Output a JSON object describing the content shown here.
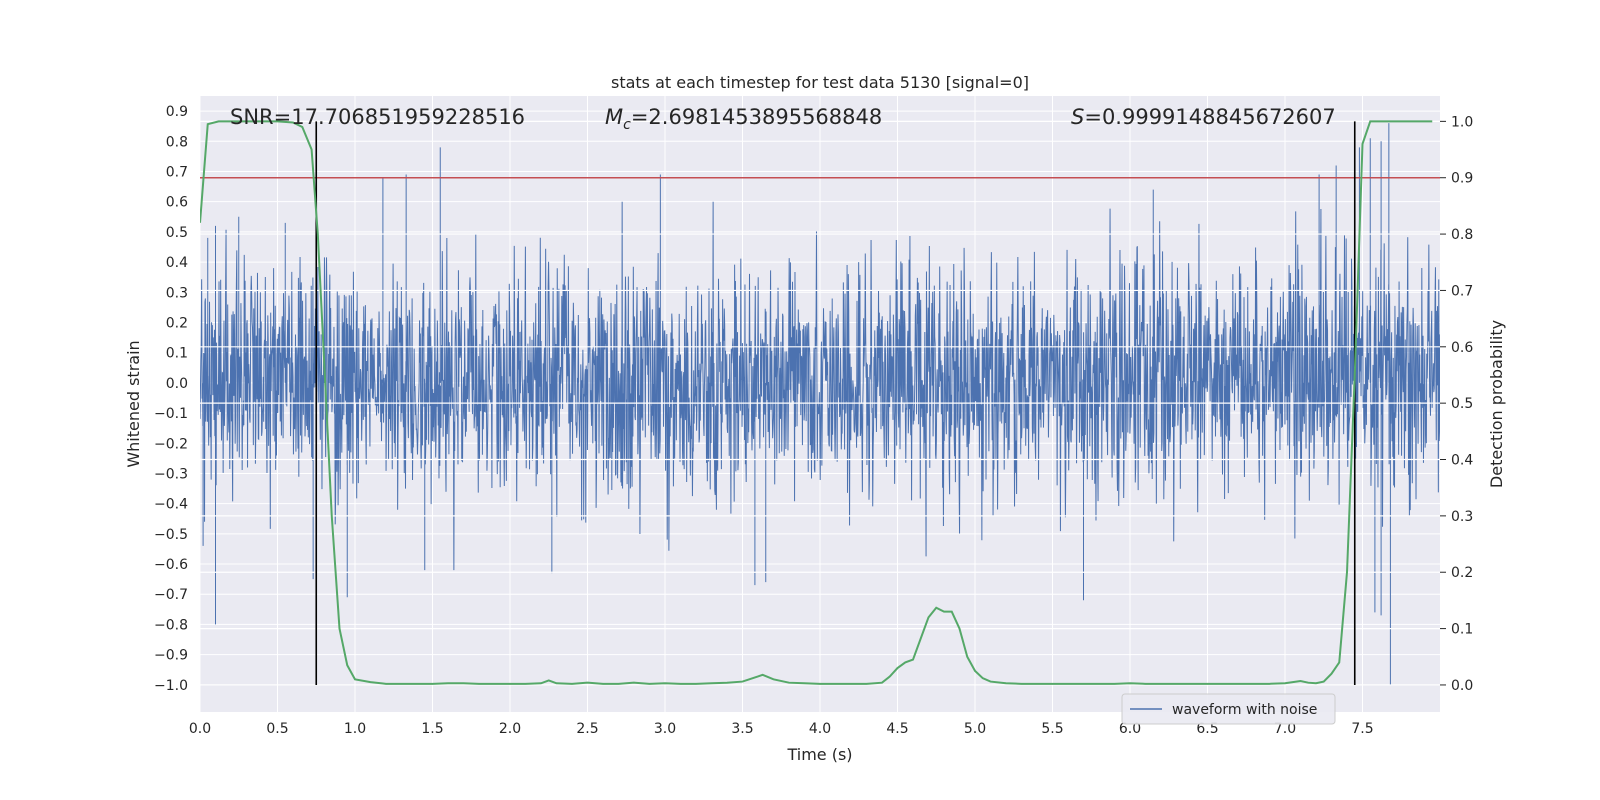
{
  "chart_data": {
    "type": "line",
    "title": "stats at each timestep for test data 5130 [signal=0]",
    "xlabel": "Time (s)",
    "ylabel": "Whitened strain",
    "y2label": "Detection probability",
    "xlim": [
      0.0,
      8.0
    ],
    "ylim": [
      -1.09,
      0.95
    ],
    "y2lim": [
      -0.048,
      1.045
    ],
    "x_ticks": [
      "0.0",
      "0.5",
      "1.0",
      "1.5",
      "2.0",
      "2.5",
      "3.0",
      "3.5",
      "4.0",
      "4.5",
      "5.0",
      "5.5",
      "6.0",
      "6.5",
      "7.0",
      "7.5"
    ],
    "y_ticks": [
      "0.9",
      "0.8",
      "0.7",
      "0.6",
      "0.5",
      "0.4",
      "0.3",
      "0.2",
      "0.1",
      "0.0",
      "−0.1",
      "−0.2",
      "−0.3",
      "−0.4",
      "−0.5",
      "−0.6",
      "−0.7",
      "−0.8",
      "−0.9",
      "−1.0"
    ],
    "y2_ticks": [
      "1.0",
      "0.9",
      "0.8",
      "0.7",
      "0.6",
      "0.5",
      "0.4",
      "0.3",
      "0.2",
      "0.1",
      "0.0"
    ],
    "grid": true,
    "legend_location": "lower right",
    "annotations": {
      "snr": "SNR=17.706851959228516",
      "mc_symbol": "M",
      "mc_sub": "c",
      "mc_value": "=2.6981453895568848",
      "s_symbol": "S",
      "s_value": "=0.9999148845672607"
    },
    "threshold": {
      "axis": "right",
      "value": 0.9
    },
    "vlines": [
      0.75,
      7.45
    ],
    "series": [
      {
        "name": "waveform with noise",
        "axis": "left",
        "kind": "noise",
        "color": "#4c72b0",
        "x_range": [
          0.0,
          8.0
        ],
        "peaks_positive": [
          [
            0.05,
            0.48
          ],
          [
            0.1,
            0.52
          ],
          [
            0.25,
            0.55
          ],
          [
            0.55,
            0.53
          ],
          [
            1.18,
            0.68
          ],
          [
            1.33,
            0.69
          ],
          [
            1.55,
            0.78
          ],
          [
            2.97,
            0.69
          ],
          [
            6.15,
            0.64
          ],
          [
            7.22,
            0.69
          ],
          [
            7.33,
            0.72
          ],
          [
            7.48,
            0.78
          ],
          [
            7.55,
            0.81
          ],
          [
            7.62,
            0.8
          ],
          [
            7.67,
            0.86
          ]
        ],
        "peaks_negative": [
          [
            0.02,
            -0.54
          ],
          [
            0.1,
            -0.8
          ],
          [
            0.73,
            -0.65
          ],
          [
            0.95,
            -0.71
          ],
          [
            1.45,
            -0.62
          ],
          [
            2.27,
            -0.63
          ],
          [
            3.58,
            -0.67
          ],
          [
            3.65,
            -0.66
          ],
          [
            5.7,
            -0.72
          ],
          [
            7.58,
            -0.76
          ],
          [
            7.62,
            -0.77
          ],
          [
            7.68,
            -1.0
          ]
        ]
      },
      {
        "name": "Detection probability",
        "axis": "right",
        "color": "#55a868",
        "x": [
          0.0,
          0.05,
          0.12,
          0.2,
          0.3,
          0.4,
          0.5,
          0.6,
          0.66,
          0.72,
          0.76,
          0.8,
          0.85,
          0.9,
          0.95,
          1.0,
          1.1,
          1.2,
          1.3,
          1.4,
          1.5,
          1.6,
          1.7,
          1.8,
          1.9,
          2.0,
          2.1,
          2.2,
          2.25,
          2.3,
          2.4,
          2.5,
          2.6,
          2.7,
          2.8,
          2.9,
          3.0,
          3.1,
          3.2,
          3.3,
          3.4,
          3.5,
          3.6,
          3.63,
          3.7,
          3.8,
          3.9,
          4.0,
          4.1,
          4.2,
          4.3,
          4.4,
          4.45,
          4.5,
          4.55,
          4.6,
          4.7,
          4.75,
          4.8,
          4.85,
          4.9,
          4.95,
          5.0,
          5.05,
          5.1,
          5.2,
          5.3,
          5.4,
          5.5,
          5.6,
          5.7,
          5.8,
          5.9,
          6.0,
          6.1,
          6.2,
          6.3,
          6.4,
          6.5,
          6.6,
          6.7,
          6.8,
          6.9,
          7.0,
          7.05,
          7.1,
          7.15,
          7.2,
          7.25,
          7.3,
          7.35,
          7.4,
          7.45,
          7.5,
          7.55,
          7.6,
          7.7,
          7.8,
          7.9,
          7.95
        ],
        "values": [
          0.82,
          0.995,
          1.0,
          1.0,
          1.0,
          1.0,
          1.0,
          0.998,
          0.99,
          0.95,
          0.8,
          0.58,
          0.3,
          0.1,
          0.035,
          0.01,
          0.005,
          0.002,
          0.002,
          0.002,
          0.002,
          0.003,
          0.003,
          0.002,
          0.002,
          0.002,
          0.002,
          0.003,
          0.008,
          0.003,
          0.002,
          0.004,
          0.002,
          0.002,
          0.004,
          0.002,
          0.003,
          0.002,
          0.002,
          0.003,
          0.004,
          0.006,
          0.015,
          0.018,
          0.01,
          0.004,
          0.003,
          0.002,
          0.002,
          0.002,
          0.002,
          0.004,
          0.015,
          0.03,
          0.04,
          0.045,
          0.12,
          0.137,
          0.13,
          0.13,
          0.1,
          0.05,
          0.025,
          0.012,
          0.006,
          0.003,
          0.002,
          0.002,
          0.002,
          0.002,
          0.002,
          0.002,
          0.002,
          0.003,
          0.002,
          0.002,
          0.002,
          0.002,
          0.002,
          0.002,
          0.002,
          0.002,
          0.002,
          0.003,
          0.005,
          0.007,
          0.004,
          0.003,
          0.006,
          0.02,
          0.04,
          0.2,
          0.55,
          0.96,
          1.0,
          1.0,
          1.0,
          1.0,
          1.0,
          1.0
        ]
      }
    ]
  }
}
